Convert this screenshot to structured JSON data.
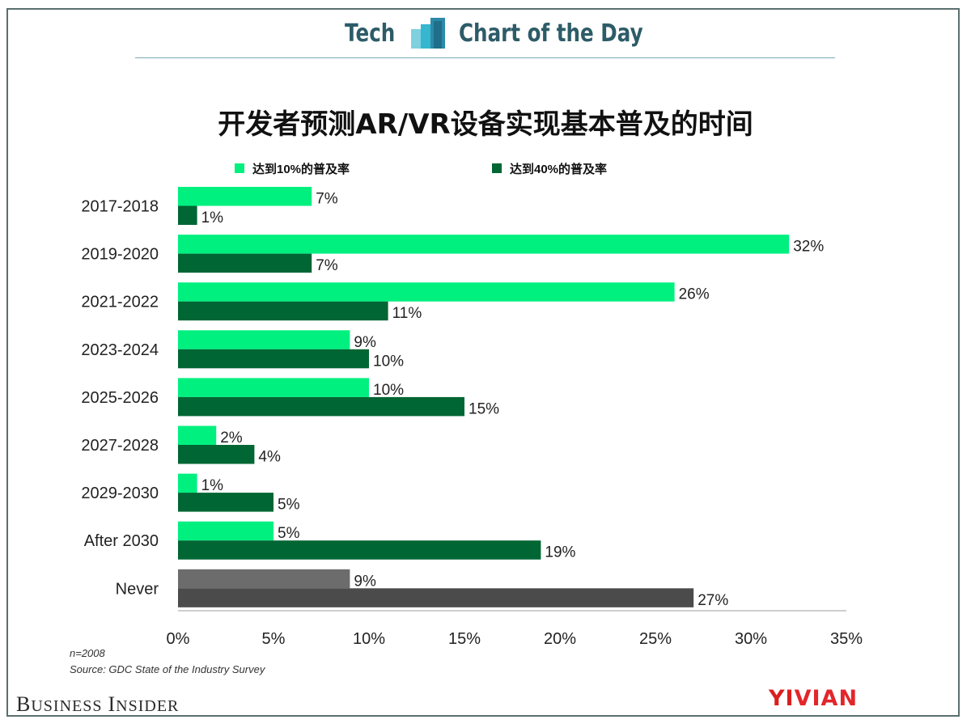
{
  "header": {
    "left_text": "Tech",
    "right_text": "Chart of the Day"
  },
  "chart_data": {
    "type": "bar",
    "orientation": "horizontal",
    "title": "开发者预测AR/VR设备实现基本普及的时间",
    "categories": [
      "2017-2018",
      "2019-2020",
      "2021-2022",
      "2023-2024",
      "2025-2026",
      "2027-2028",
      "2029-2030",
      "After 2030",
      "Never"
    ],
    "series": [
      {
        "name": "达到10%的普及率",
        "color": "#00f07f",
        "values": [
          7,
          32,
          26,
          9,
          10,
          2,
          1,
          5,
          9
        ]
      },
      {
        "name": "达到40%的普及率",
        "color": "#006633",
        "values": [
          1,
          7,
          11,
          10,
          15,
          4,
          5,
          19,
          27
        ]
      }
    ],
    "never_colors": [
      "#6c6c6c",
      "#4b4b4b"
    ],
    "data_labels": [
      [
        "7%",
        "32%",
        "26%",
        "9%",
        "10%",
        "2%",
        "1%",
        "5%",
        "9%"
      ],
      [
        "1%",
        "7%",
        "11%",
        "10%",
        "15%",
        "4%",
        "5%",
        "19%",
        "27%"
      ]
    ],
    "xlim": [
      0,
      35
    ],
    "xticks": [
      "0%",
      "5%",
      "10%",
      "15%",
      "20%",
      "25%",
      "30%",
      "35%"
    ],
    "legend_position": "top",
    "grid": false
  },
  "footnote": {
    "n": "n=2008",
    "source": "Source: GDC State of the Industry Survey"
  },
  "brand": {
    "bi_first_initial": "B",
    "bi_first_rest": "USINESS",
    "bi_second_initial": "I",
    "bi_second_rest": "NSIDER",
    "yivian_part1": "YI",
    "yivian_part2": "VIAN",
    "yivian_color1": "#d8201f",
    "yivian_color2": "#e2262b"
  }
}
